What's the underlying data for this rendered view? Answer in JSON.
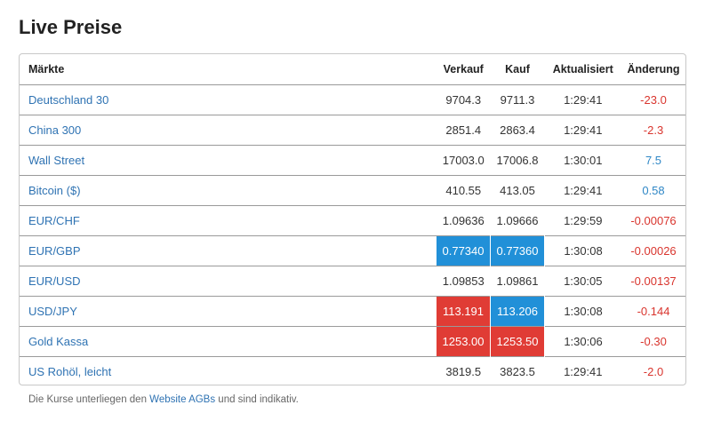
{
  "page": {
    "title": "Live Preise"
  },
  "table": {
    "headers": {
      "market": "Märkte",
      "sell": "Verkauf",
      "buy": "Kauf",
      "updated": "Aktualisiert",
      "change": "Änderung"
    },
    "rows": [
      {
        "market": "Deutschland 30",
        "sell": "9704.3",
        "buy": "9711.3",
        "updated": "1:29:41",
        "change": "-23.0"
      },
      {
        "market": "China 300",
        "sell": "2851.4",
        "buy": "2863.4",
        "updated": "1:29:41",
        "change": "-2.3"
      },
      {
        "market": "Wall Street",
        "sell": "17003.0",
        "buy": "17006.8",
        "updated": "1:30:01",
        "change": "7.5"
      },
      {
        "market": "Bitcoin ($)",
        "sell": "410.55",
        "buy": "413.05",
        "updated": "1:29:41",
        "change": "0.58"
      },
      {
        "market": "EUR/CHF",
        "sell": "1.09636",
        "buy": "1.09666",
        "updated": "1:29:59",
        "change": "-0.00076"
      },
      {
        "market": "EUR/GBP",
        "sell": "0.77340",
        "buy": "0.77360",
        "updated": "1:30:08",
        "change": "-0.00026"
      },
      {
        "market": "EUR/USD",
        "sell": "1.09853",
        "buy": "1.09861",
        "updated": "1:30:05",
        "change": "-0.00137"
      },
      {
        "market": "USD/JPY",
        "sell": "113.191",
        "buy": "113.206",
        "updated": "1:30:08",
        "change": "-0.144"
      },
      {
        "market": "Gold Kassa",
        "sell": "1253.00",
        "buy": "1253.50",
        "updated": "1:30:06",
        "change": "-0.30"
      },
      {
        "market": "US Rohöl, leicht",
        "sell": "3819.5",
        "buy": "3823.5",
        "updated": "1:29:41",
        "change": "-2.0"
      }
    ]
  },
  "footnote": {
    "before": "Die Kurse unterliegen den ",
    "link": "Website AGBs",
    "after": " und sind indikativ."
  },
  "colors": {
    "link": "#2f73b3",
    "negative": "#d9352e",
    "positive": "#2f87c6",
    "flash_up": "#2190d8",
    "flash_down": "#e03c35"
  }
}
